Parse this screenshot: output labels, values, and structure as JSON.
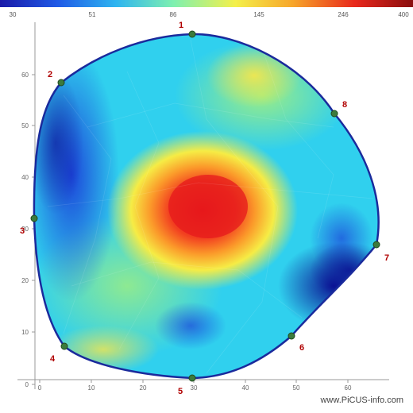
{
  "colorbar": {
    "labels": [
      "30",
      "51",
      "86",
      "145",
      "246",
      "400"
    ],
    "colors": [
      "#1a1aa8",
      "#1f5ae6",
      "#2eb4f0",
      "#7ef0b0",
      "#f4f04a",
      "#f7a52a",
      "#e8281c",
      "#8a0e0e"
    ]
  },
  "axes": {
    "x_ticks": [
      "0",
      "10",
      "20",
      "30",
      "40",
      "50",
      "60"
    ],
    "y_ticks": [
      "0",
      "10",
      "20",
      "30",
      "40",
      "50",
      "60"
    ]
  },
  "sensors": [
    {
      "id": "1"
    },
    {
      "id": "2"
    },
    {
      "id": "3"
    },
    {
      "id": "4"
    },
    {
      "id": "5"
    },
    {
      "id": "6"
    },
    {
      "id": "7"
    },
    {
      "id": "8"
    }
  ],
  "watermark": "www.PiCUS-info.com"
}
